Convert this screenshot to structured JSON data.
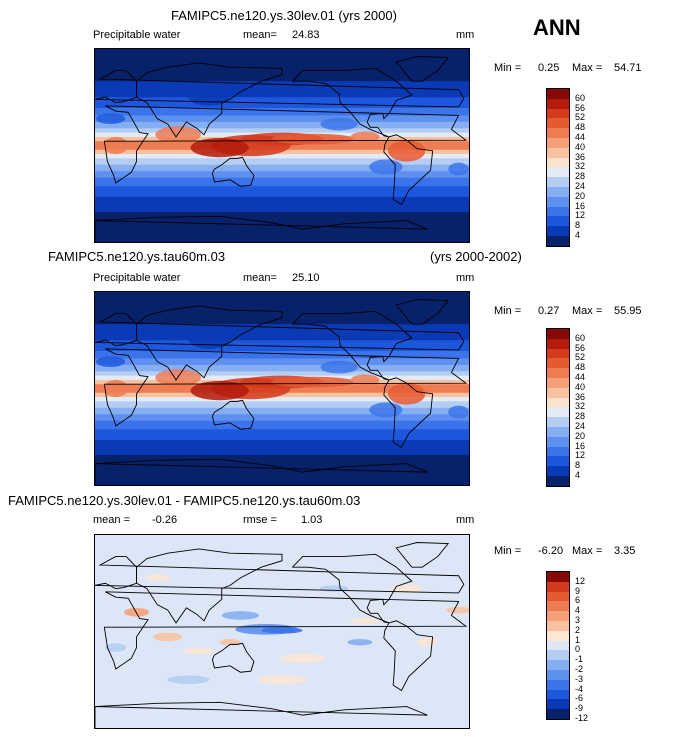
{
  "season": "ANN",
  "colors": {
    "full": [
      "#08216b",
      "#0a3ab5",
      "#1c57dd",
      "#3a73ea",
      "#5e90f0",
      "#86aef2",
      "#b4cdf3",
      "#e3ebf7",
      "#fbe2cd",
      "#f8c2a0",
      "#f4a079",
      "#ee7d53",
      "#e65a32",
      "#d43a1c",
      "#b31b0d",
      "#860a03"
    ],
    "diff": [
      "#08216b",
      "#0a3ab5",
      "#1c57dd",
      "#3a73ea",
      "#5e90f0",
      "#86aef2",
      "#b4cdf3",
      "#dce6f6",
      "#fde6d4",
      "#f8c2a0",
      "#f4a079",
      "#ee7d53",
      "#e65a32",
      "#d43a1c",
      "#860a03"
    ]
  },
  "panels": [
    {
      "title": "FAMIPC5.ne120.ys.30lev.01 (yrs 2000)",
      "variable": "Precipitable water",
      "mean_label": "mean=",
      "mean": "24.83",
      "units": "mm",
      "min_label": "Min =",
      "min": "0.25",
      "max_label": "Max =",
      "max": "54.71",
      "levels": [
        "4",
        "8",
        "12",
        "16",
        "20",
        "24",
        "28",
        "32",
        "36",
        "40",
        "44",
        "48",
        "52",
        "56",
        "60"
      ]
    },
    {
      "title": "FAMIPC5.ne120.ys.tau60m.03",
      "years": "(yrs 2000-2002)",
      "variable": "Precipitable water",
      "mean_label": "mean=",
      "mean": "25.10",
      "units": "mm",
      "min_label": "Min =",
      "min": "0.27",
      "max_label": "Max =",
      "max": "55.95",
      "levels": [
        "4",
        "8",
        "12",
        "16",
        "20",
        "24",
        "28",
        "32",
        "36",
        "40",
        "44",
        "48",
        "52",
        "56",
        "60"
      ]
    },
    {
      "title": "FAMIPC5.ne120.ys.30lev.01 - FAMIPC5.ne120.ys.tau60m.03",
      "mean_label": "mean =",
      "mean": "-0.26",
      "rmse_label": "rmse =",
      "rmse": "1.03",
      "units": "mm",
      "min_label": "Min =",
      "min": "-6.20",
      "max_label": "Max =",
      "max": "3.35",
      "levels": [
        "-12",
        "-9",
        "-6",
        "-4",
        "-3",
        "-2",
        "-1",
        "0",
        "1",
        "2",
        "3",
        "4",
        "6",
        "9",
        "12"
      ]
    }
  ],
  "chart_data": [
    {
      "type": "heatmap",
      "title": "FAMIPC5.ne120.ys.30lev.01 (yrs 2000)",
      "variable": "Precipitable water",
      "units": "mm",
      "xlim": [
        0,
        360
      ],
      "ylim": [
        -90,
        90
      ],
      "mean": 24.83,
      "min": 0.25,
      "max": 54.71,
      "contour_levels": [
        4,
        8,
        12,
        16,
        20,
        24,
        28,
        32,
        36,
        40,
        44,
        48,
        52,
        56,
        60
      ]
    },
    {
      "type": "heatmap",
      "title": "FAMIPC5.ne120.ys.tau60m.03",
      "variable": "Precipitable water",
      "units": "mm",
      "xlim": [
        0,
        360
      ],
      "ylim": [
        -90,
        90
      ],
      "mean": 25.1,
      "min": 0.27,
      "max": 55.95,
      "contour_levels": [
        4,
        8,
        12,
        16,
        20,
        24,
        28,
        32,
        36,
        40,
        44,
        48,
        52,
        56,
        60
      ]
    },
    {
      "type": "heatmap",
      "title": "FAMIPC5.ne120.ys.30lev.01 - FAMIPC5.ne120.ys.tau60m.03",
      "units": "mm",
      "xlim": [
        0,
        360
      ],
      "ylim": [
        -90,
        90
      ],
      "mean": -0.26,
      "rmse": 1.03,
      "min": -6.2,
      "max": 3.35,
      "contour_levels": [
        -12,
        -9,
        -6,
        -4,
        -3,
        -2,
        -1,
        0,
        1,
        2,
        3,
        4,
        6,
        9,
        12
      ]
    }
  ]
}
